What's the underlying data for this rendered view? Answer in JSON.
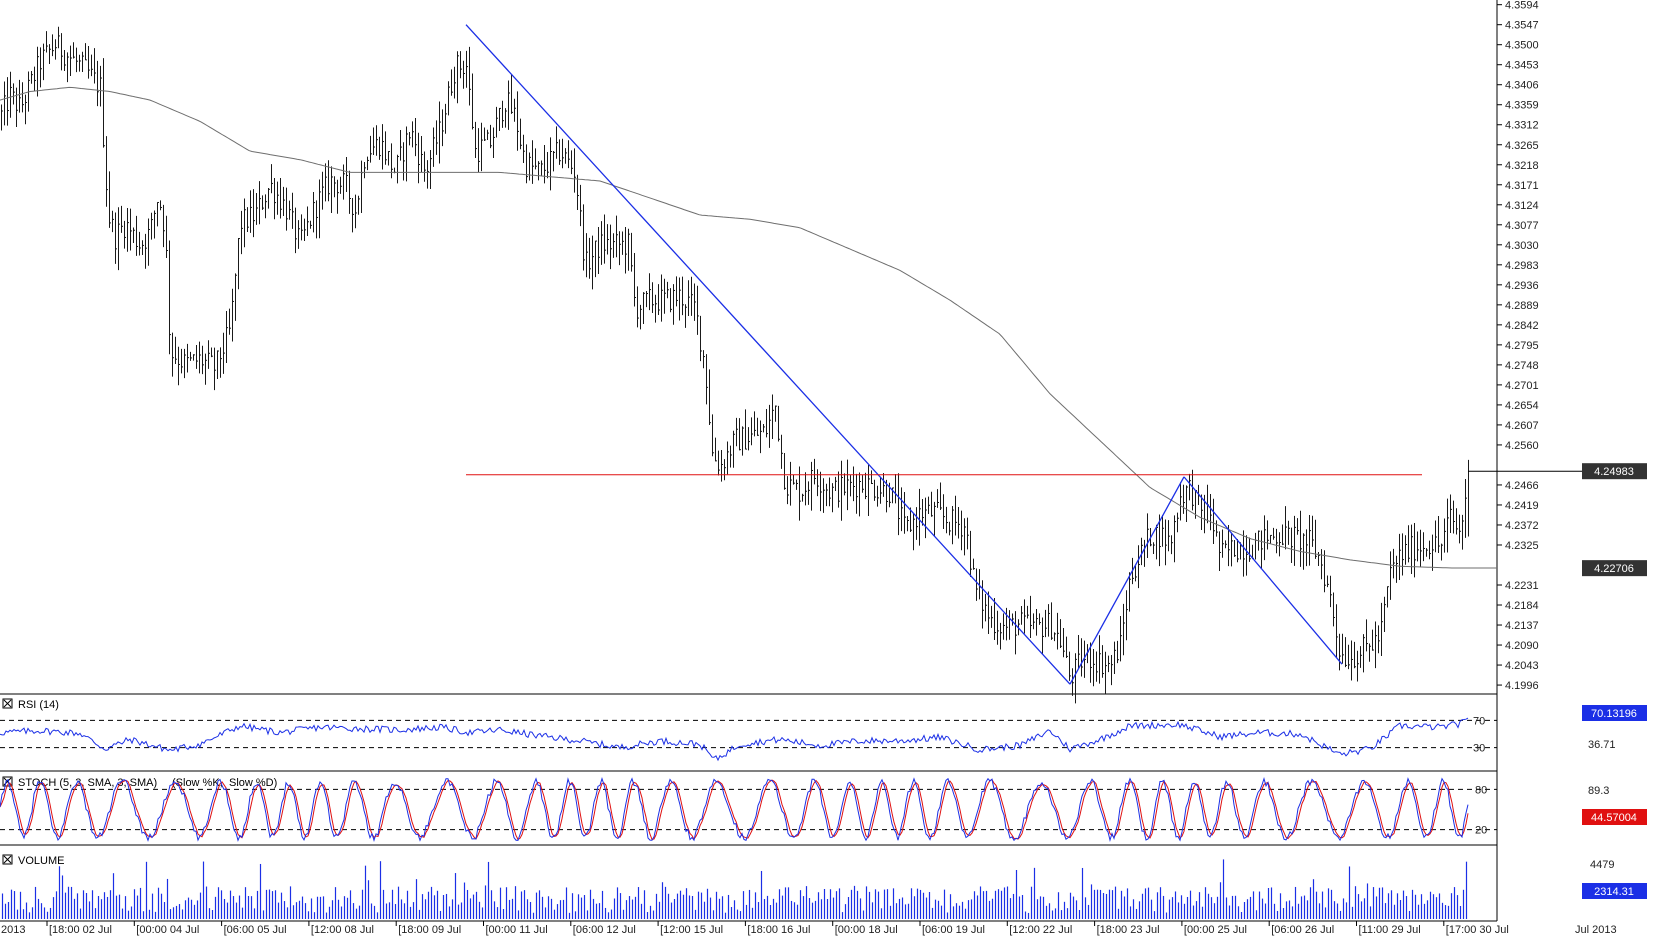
{
  "colors": {
    "candle": "#1a1a1a",
    "ma": "#6e6e6e",
    "trend": "#1b2fe6",
    "resistance": "#e01010",
    "rsi": "#1b2fe6",
    "stoch_k": "#1b2fe6",
    "stoch_d": "#e01010",
    "volume": "#1b2fe6",
    "label_dark": "#333333",
    "label_blue": "#1b2fe6",
    "label_red": "#e01010"
  },
  "chart_data": [
    {
      "type": "line",
      "role": "price",
      "y_ticks": [
        "4.3594",
        "4.3547",
        "4.3500",
        "4.3453",
        "4.3406",
        "4.3359",
        "4.3312",
        "4.3265",
        "4.3218",
        "4.3171",
        "4.3124",
        "4.3077",
        "4.3030",
        "4.2983",
        "4.2936",
        "4.2889",
        "4.2842",
        "4.2795",
        "4.2748",
        "4.2701",
        "4.2654",
        "4.2607",
        "4.2560",
        "4.2466",
        "4.2419",
        "4.2372",
        "4.2325",
        "4.2231",
        "4.2184",
        "4.2137",
        "4.2090",
        "4.2043",
        "4.1996"
      ],
      "ylim": [
        4.1975,
        4.3605
      ],
      "x_labels": [
        "2013",
        "18:00 02 Jul",
        "00:00 04 Jul",
        "06:00 05 Jul",
        "12:00 08 Jul",
        "18:00 09 Jul",
        "00:00 11 Jul",
        "06:00 12 Jul",
        "12:00 15 Jul",
        "18:00 16 Jul",
        "00:00 18 Jul",
        "06:00 19 Jul",
        "12:00 22 Jul",
        "18:00 23 Jul",
        "00:00 25 Jul",
        "06:00 26 Jul",
        "11:00 29 Jul",
        "17:00 30 Jul",
        "Jul 2013"
      ],
      "close_anchors": [
        [
          0,
          4.333
        ],
        [
          10,
          4.338
        ],
        [
          20,
          4.335
        ],
        [
          40,
          4.346
        ],
        [
          55,
          4.35
        ],
        [
          70,
          4.347
        ],
        [
          85,
          4.344
        ],
        [
          100,
          4.34
        ],
        [
          108,
          4.31
        ],
        [
          115,
          4.305
        ],
        [
          125,
          4.308
        ],
        [
          140,
          4.303
        ],
        [
          150,
          4.306
        ],
        [
          158,
          4.315
        ],
        [
          165,
          4.306
        ],
        [
          170,
          4.278
        ],
        [
          185,
          4.275
        ],
        [
          200,
          4.276
        ],
        [
          215,
          4.274
        ],
        [
          230,
          4.283
        ],
        [
          240,
          4.308
        ],
        [
          255,
          4.31
        ],
        [
          270,
          4.317
        ],
        [
          285,
          4.312
        ],
        [
          300,
          4.303
        ],
        [
          315,
          4.312
        ],
        [
          330,
          4.318
        ],
        [
          345,
          4.317
        ],
        [
          355,
          4.311
        ],
        [
          365,
          4.325
        ],
        [
          380,
          4.327
        ],
        [
          395,
          4.32
        ],
        [
          410,
          4.33
        ],
        [
          425,
          4.32
        ],
        [
          440,
          4.33
        ],
        [
          455,
          4.345
        ],
        [
          466,
          4.345
        ],
        [
          475,
          4.325
        ],
        [
          490,
          4.327
        ],
        [
          505,
          4.337
        ],
        [
          515,
          4.333
        ],
        [
          525,
          4.322
        ],
        [
          540,
          4.32
        ],
        [
          560,
          4.325
        ],
        [
          575,
          4.32
        ],
        [
          585,
          4.298
        ],
        [
          600,
          4.303
        ],
        [
          615,
          4.303
        ],
        [
          628,
          4.303
        ],
        [
          635,
          4.288
        ],
        [
          650,
          4.29
        ],
        [
          665,
          4.29
        ],
        [
          680,
          4.291
        ],
        [
          695,
          4.288
        ],
        [
          705,
          4.274
        ],
        [
          712,
          4.254
        ],
        [
          720,
          4.251
        ],
        [
          735,
          4.257
        ],
        [
          750,
          4.258
        ],
        [
          765,
          4.259
        ],
        [
          775,
          4.265
        ],
        [
          785,
          4.247
        ],
        [
          800,
          4.245
        ],
        [
          815,
          4.249
        ],
        [
          830,
          4.245
        ],
        [
          845,
          4.246
        ],
        [
          860,
          4.247
        ],
        [
          875,
          4.246
        ],
        [
          890,
          4.245
        ],
        [
          905,
          4.236
        ],
        [
          920,
          4.24
        ],
        [
          935,
          4.24
        ],
        [
          950,
          4.238
        ],
        [
          965,
          4.237
        ],
        [
          975,
          4.222
        ],
        [
          990,
          4.215
        ],
        [
          1005,
          4.213
        ],
        [
          1020,
          4.214
        ],
        [
          1035,
          4.213
        ],
        [
          1050,
          4.214
        ],
        [
          1060,
          4.21
        ],
        [
          1070,
          4.201
        ],
        [
          1080,
          4.205
        ],
        [
          1090,
          4.206
        ],
        [
          1100,
          4.205
        ],
        [
          1110,
          4.204
        ],
        [
          1120,
          4.209
        ],
        [
          1130,
          4.225
        ],
        [
          1140,
          4.23
        ],
        [
          1150,
          4.235
        ],
        [
          1160,
          4.235
        ],
        [
          1170,
          4.233
        ],
        [
          1180,
          4.244
        ],
        [
          1190,
          4.246
        ],
        [
          1200,
          4.24
        ],
        [
          1210,
          4.24
        ],
        [
          1220,
          4.23
        ],
        [
          1235,
          4.232
        ],
        [
          1250,
          4.232
        ],
        [
          1265,
          4.234
        ],
        [
          1280,
          4.235
        ],
        [
          1295,
          4.234
        ],
        [
          1310,
          4.233
        ],
        [
          1320,
          4.229
        ],
        [
          1330,
          4.22
        ],
        [
          1340,
          4.207
        ],
        [
          1350,
          4.206
        ],
        [
          1365,
          4.208
        ],
        [
          1380,
          4.211
        ],
        [
          1390,
          4.226
        ],
        [
          1400,
          4.23
        ],
        [
          1415,
          4.232
        ],
        [
          1430,
          4.233
        ],
        [
          1440,
          4.232
        ],
        [
          1450,
          4.239
        ],
        [
          1460,
          4.235
        ],
        [
          1468,
          4.2498
        ]
      ],
      "ma_anchors": [
        [
          0,
          4.337
        ],
        [
          30,
          4.339
        ],
        [
          70,
          4.34
        ],
        [
          110,
          4.339
        ],
        [
          150,
          4.337
        ],
        [
          200,
          4.332
        ],
        [
          250,
          4.325
        ],
        [
          300,
          4.323
        ],
        [
          350,
          4.32
        ],
        [
          400,
          4.32
        ],
        [
          450,
          4.32
        ],
        [
          500,
          4.32
        ],
        [
          550,
          4.319
        ],
        [
          600,
          4.318
        ],
        [
          650,
          4.314
        ],
        [
          700,
          4.31
        ],
        [
          750,
          4.309
        ],
        [
          800,
          4.307
        ],
        [
          850,
          4.302
        ],
        [
          900,
          4.297
        ],
        [
          950,
          4.29
        ],
        [
          1000,
          4.282
        ],
        [
          1050,
          4.268
        ],
        [
          1100,
          4.257
        ],
        [
          1150,
          4.246
        ],
        [
          1200,
          4.239
        ],
        [
          1250,
          4.234
        ],
        [
          1300,
          4.231
        ],
        [
          1350,
          4.229
        ],
        [
          1400,
          4.2275
        ],
        [
          1450,
          4.2271
        ],
        [
          1468,
          4.2271
        ]
      ],
      "trendlines": [
        [
          [
            466,
            4.3547
          ],
          [
            1070,
            4.1998
          ]
        ],
        [
          [
            1070,
            4.1998
          ],
          [
            1184,
            4.2485
          ]
        ],
        [
          [
            1184,
            4.2485
          ],
          [
            1342,
            4.2045
          ]
        ]
      ],
      "resistance": 4.249,
      "labels": {
        "last_price": "4.24983",
        "ma_value": "4.22706"
      }
    },
    {
      "type": "line",
      "role": "indicator",
      "title": "RSI (14)",
      "levels": {
        "upper": "70",
        "lower": "30"
      },
      "ylim": [
        0,
        100
      ],
      "anchors": [
        [
          0,
          52
        ],
        [
          40,
          55
        ],
        [
          80,
          51
        ],
        [
          105,
          28
        ],
        [
          130,
          42
        ],
        [
          170,
          26
        ],
        [
          200,
          35
        ],
        [
          240,
          62
        ],
        [
          280,
          52
        ],
        [
          320,
          60
        ],
        [
          360,
          58
        ],
        [
          400,
          56
        ],
        [
          440,
          60
        ],
        [
          470,
          52
        ],
        [
          500,
          56
        ],
        [
          540,
          47
        ],
        [
          580,
          40
        ],
        [
          620,
          30
        ],
        [
          660,
          40
        ],
        [
          700,
          35
        ],
        [
          715,
          12
        ],
        [
          740,
          35
        ],
        [
          780,
          42
        ],
        [
          820,
          33
        ],
        [
          860,
          40
        ],
        [
          900,
          40
        ],
        [
          940,
          45
        ],
        [
          980,
          27
        ],
        [
          1020,
          33
        ],
        [
          1050,
          55
        ],
        [
          1070,
          28
        ],
        [
          1100,
          42
        ],
        [
          1130,
          62
        ],
        [
          1180,
          64
        ],
        [
          1220,
          46
        ],
        [
          1260,
          52
        ],
        [
          1300,
          50
        ],
        [
          1340,
          20
        ],
        [
          1370,
          28
        ],
        [
          1400,
          62
        ],
        [
          1440,
          60
        ],
        [
          1460,
          65
        ],
        [
          1468,
          70
        ]
      ],
      "labels": {
        "current": "70.13196",
        "secondary": "36.71"
      }
    },
    {
      "type": "line",
      "role": "indicator",
      "title": "STOCH (5, 3, SMA, 3, SMA)",
      "legend": [
        "(Slow %K,",
        "Slow %D)"
      ],
      "levels": {
        "upper": "80",
        "lower": "20"
      },
      "ylim": [
        0,
        100
      ],
      "labels": {
        "current": "44.57004",
        "secondary": "89.3"
      }
    },
    {
      "type": "bar",
      "role": "volume",
      "title": "VOLUME",
      "labels": {
        "current": "2314.31",
        "secondary": "4479"
      }
    }
  ]
}
